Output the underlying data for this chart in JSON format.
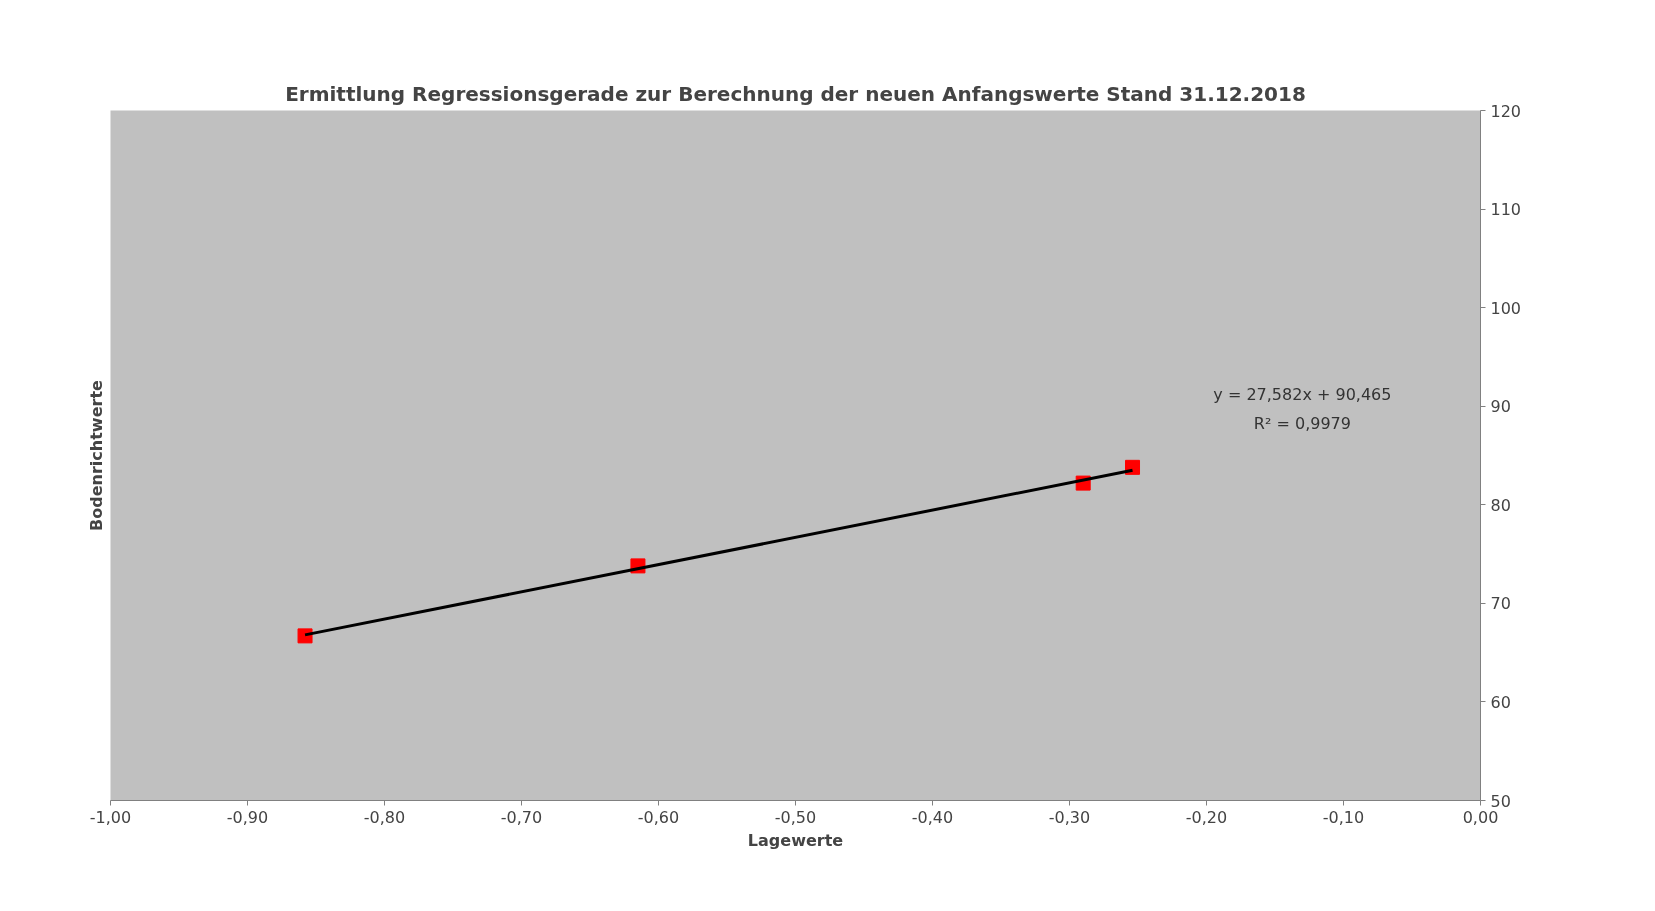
{
  "chart_data": {
    "type": "scatter",
    "title": "Ermittlung Regressionsgerade zur Berechnung der neuen Anfangswerte Stand 31.12.2018",
    "xlabel": "Lagewerte",
    "ylabel": "Bodenrichtwerte",
    "x": [
      -0.858,
      -0.615,
      -0.29,
      -0.254
    ],
    "series": [
      {
        "color": "#ff0000",
        "marker": "square",
        "values": [
          66.7,
          73.8,
          82.2,
          83.8
        ]
      },
      {
        "type": "line",
        "color": "#000000",
        "x": [
          -0.858,
          -0.254
        ],
        "values": [
          66.8,
          83.5
        ]
      }
    ],
    "annotations": [
      "y = 27,582x + 90,465",
      "R² = 0,9979"
    ],
    "xlim": [
      -1,
      0
    ],
    "ylim": [
      50,
      120
    ],
    "xticks": [
      {
        "value": -1,
        "label": "-1,00"
      },
      {
        "value": -0.9,
        "label": "-0,90"
      },
      {
        "value": -0.8,
        "label": "-0,80"
      },
      {
        "value": -0.7,
        "label": "-0,70"
      },
      {
        "value": -0.6,
        "label": "-0,60"
      },
      {
        "value": -0.5,
        "label": "-0,50"
      },
      {
        "value": -0.4,
        "label": "-0,40"
      },
      {
        "value": -0.3,
        "label": "-0,30"
      },
      {
        "value": -0.2,
        "label": "-0,20"
      },
      {
        "value": -0.1,
        "label": "-0,10"
      },
      {
        "value": 0,
        "label": "0,00"
      }
    ],
    "yticks": [
      50,
      60,
      70,
      80,
      90,
      100,
      110,
      120
    ],
    "grid": false
  }
}
